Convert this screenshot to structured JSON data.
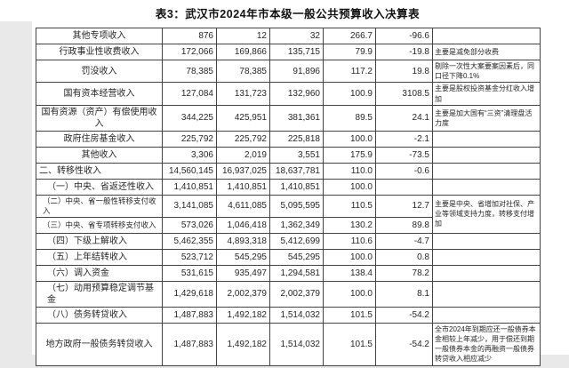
{
  "colors": {
    "page_bg": "#ffffff",
    "outer_bg": "#e9e9e9",
    "border": "#444444",
    "text": "#262626",
    "title_text": "#111111"
  },
  "page": {
    "title": "表3：武汉市2024年市本级一般公共预算收入决算表"
  },
  "table": {
    "rows": [
      {
        "label": "其他专项收入",
        "v1": "876",
        "v2": "12",
        "v3": "32",
        "pct": "266.7",
        "chg": "-96.6",
        "note": ""
      },
      {
        "label": "行政事业性收费收入",
        "v1": "172,066",
        "v2": "169,866",
        "v3": "135,715",
        "pct": "79.9",
        "chg": "-19.8",
        "note": "主要是减免部分收费"
      },
      {
        "label": "罚没收入",
        "v1": "78,385",
        "v2": "78,385",
        "v3": "91,896",
        "pct": "117.2",
        "chg": "19.8",
        "note": "剔除一次性大案要案因素后，同口径下降0.1%"
      },
      {
        "label": "国有资本经营收入",
        "v1": "127,084",
        "v2": "131,723",
        "v3": "132,960",
        "pct": "100.9",
        "chg": "3108.5",
        "note": "主要是股权投资基金分红收入增加"
      },
      {
        "label": "国有资源（资产）有偿使用收入",
        "v1": "344,225",
        "v2": "425,951",
        "v3": "381,361",
        "pct": "89.5",
        "chg": "24.1",
        "note": "主要是加大国有“三资”清理盘活力度"
      },
      {
        "label": "政府住房基金收入",
        "v1": "225,792",
        "v2": "225,792",
        "v3": "225,818",
        "pct": "100.0",
        "chg": "-2.1",
        "note": ""
      },
      {
        "label": "其他收入",
        "v1": "3,306",
        "v2": "2,019",
        "v3": "3,551",
        "pct": "175.9",
        "chg": "-73.5",
        "note": ""
      },
      {
        "label": "二、转移性收入",
        "v1": "14,560,145",
        "v2": "16,937,025",
        "v3": "18,637,781",
        "pct": "110.0",
        "chg": "-0.6",
        "note": ""
      },
      {
        "label": "（一）中央、省返还性收入",
        "v1": "1,410,851",
        "v2": "1,410,851",
        "v3": "1,410,851",
        "pct": "100.0",
        "chg": "",
        "note": ""
      },
      {
        "label": "（二）中央、省一般性转移支付收入",
        "v1": "3,141,085",
        "v2": "4,611,085",
        "v3": "5,095,595",
        "pct": "110.5",
        "chg": "12.7",
        "note": "主要是中央、省增加对社保、产业等领域支持力度，转移支付增加"
      },
      {
        "label": "（三）中央、省专项转移支付收入",
        "v1": "573,026",
        "v2": "1,046,418",
        "v3": "1,362,349",
        "pct": "130.2",
        "chg": "89.8"
      },
      {
        "label": "（四）下级上解收入",
        "v1": "5,462,355",
        "v2": "4,893,318",
        "v3": "5,412,699",
        "pct": "110.6",
        "chg": "-4.7",
        "note": ""
      },
      {
        "label": "（五）上年结转收入",
        "v1": "523,712",
        "v2": "545,295",
        "v3": "545,295",
        "pct": "100.0",
        "chg": "0.8",
        "note": ""
      },
      {
        "label": "（六）调入资金",
        "v1": "531,615",
        "v2": "935,497",
        "v3": "1,294,581",
        "pct": "138.4",
        "chg": "78.2",
        "note": ""
      },
      {
        "label": "（七）动用预算稳定调节基金",
        "v1": "1,429,618",
        "v2": "2,002,379",
        "v3": "2,002,379",
        "pct": "100.0",
        "chg": "8.1",
        "note": ""
      },
      {
        "label": "（八）债务转贷收入",
        "v1": "1,487,883",
        "v2": "1,492,182",
        "v3": "1,514,032",
        "pct": "101.5",
        "chg": "-54.2",
        "note": ""
      },
      {
        "label": "地方政府一般债务转贷收入",
        "v1": "1,487,883",
        "v2": "1,492,182",
        "v3": "1,514,032",
        "pct": "101.5",
        "chg": "-54.2",
        "note": "全市2024年到期应还一般债券本金相较上年减少，用于偿还到期一般债券本金的再融资一般债券转贷收入相应减少"
      }
    ]
  }
}
